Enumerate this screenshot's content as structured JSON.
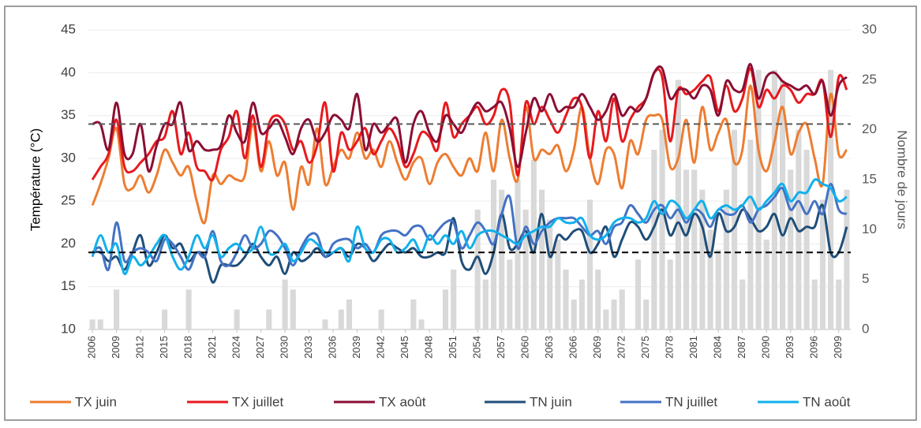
{
  "chart_data": {
    "type": "line",
    "y_label": "Température (°C)",
    "y2_label": "Nombre de jours",
    "x": [
      2006,
      2007,
      2008,
      2009,
      2010,
      2011,
      2012,
      2013,
      2014,
      2015,
      2016,
      2017,
      2018,
      2019,
      2020,
      2021,
      2022,
      2023,
      2024,
      2025,
      2026,
      2027,
      2028,
      2029,
      2030,
      2031,
      2032,
      2033,
      2034,
      2035,
      2036,
      2037,
      2038,
      2039,
      2040,
      2041,
      2042,
      2043,
      2044,
      2045,
      2046,
      2047,
      2048,
      2049,
      2050,
      2051,
      2052,
      2053,
      2054,
      2055,
      2056,
      2057,
      2058,
      2059,
      2060,
      2061,
      2062,
      2063,
      2064,
      2065,
      2066,
      2067,
      2068,
      2069,
      2070,
      2071,
      2072,
      2073,
      2074,
      2075,
      2076,
      2077,
      2078,
      2079,
      2080,
      2081,
      2082,
      2083,
      2084,
      2085,
      2086,
      2087,
      2088,
      2089,
      2090,
      2091,
      2092,
      2093,
      2094,
      2095,
      2096,
      2097,
      2098,
      2099,
      2100
    ],
    "xlim": [
      2005.5,
      2100.5
    ],
    "xticks": [
      2006,
      2009,
      2012,
      2015,
      2018,
      2021,
      2024,
      2027,
      2030,
      2033,
      2036,
      2039,
      2042,
      2045,
      2048,
      2051,
      2054,
      2057,
      2060,
      2063,
      2066,
      2069,
      2072,
      2075,
      2078,
      2081,
      2084,
      2087,
      2090,
      2093,
      2096,
      2099
    ],
    "ylim": [
      10,
      45
    ],
    "yticks": [
      10,
      15,
      20,
      25,
      30,
      35,
      40,
      45
    ],
    "y2lim": [
      0,
      30
    ],
    "y2ticks": [
      0,
      5,
      10,
      15,
      20,
      25,
      30
    ],
    "grid": true,
    "reference_lines": [
      {
        "value": 34,
        "color": "#595959"
      },
      {
        "value": 19,
        "color": "#000000"
      }
    ],
    "series": [
      {
        "type": "bar",
        "axis": "y2",
        "color": "#d9d9d9",
        "values": [
          1,
          1,
          0,
          4,
          0,
          0,
          0,
          0,
          0,
          2,
          0,
          0,
          4,
          0,
          0,
          0,
          0,
          0,
          2,
          0,
          0,
          0,
          2,
          0,
          5,
          4,
          0,
          0,
          0,
          1,
          0,
          2,
          3,
          0,
          0,
          0,
          2,
          0,
          0,
          0,
          3,
          1,
          0,
          0,
          4,
          6,
          0,
          0,
          12,
          5,
          15,
          14,
          7,
          15,
          12,
          17,
          14,
          11,
          9,
          6,
          3,
          5,
          13,
          6,
          2,
          3,
          4,
          0,
          7,
          3,
          18,
          20,
          7,
          25,
          16,
          16,
          14,
          10,
          8,
          14,
          20,
          5,
          19,
          26,
          9,
          26,
          25,
          16,
          20,
          18,
          5,
          13,
          26,
          5,
          14
        ]
      },
      {
        "name": "TX juin",
        "color": "#ed7d31",
        "values": [
          24.5,
          27,
          30,
          33.5,
          27,
          26.5,
          28,
          26,
          28,
          31,
          29.5,
          28,
          29,
          25,
          22.5,
          28,
          27,
          28,
          27.5,
          28,
          34,
          28.5,
          32,
          28,
          29.5,
          24,
          29,
          27,
          33.5,
          27,
          29,
          31,
          30,
          33,
          30,
          31,
          29,
          32,
          29.5,
          27.5,
          29.5,
          30,
          27,
          29.5,
          30.5,
          29,
          28,
          30,
          28.5,
          33,
          28.5,
          34.5,
          30,
          27.5,
          36,
          30,
          31,
          30.5,
          31.5,
          28.5,
          31,
          36,
          30,
          27,
          31,
          30.5,
          26.5,
          32,
          30.5,
          34.5,
          35,
          34.5,
          29,
          30,
          34.5,
          29.5,
          36,
          31,
          33,
          34.5,
          29.5,
          31,
          38.5,
          31,
          28.5,
          32,
          36,
          30.5,
          33,
          34,
          30,
          27,
          37.5,
          30.5,
          31
        ]
      },
      {
        "name": "TX juillet",
        "color": "#e8191d",
        "values": [
          27.5,
          29,
          30.5,
          34.5,
          29,
          28.5,
          29.5,
          30.5,
          32,
          32.5,
          35.5,
          30.5,
          33,
          29,
          28.5,
          27.5,
          31,
          32.5,
          35.5,
          30,
          35,
          29,
          34,
          35,
          34,
          31,
          32,
          29.5,
          31.5,
          36.5,
          28.5,
          33,
          31,
          32,
          33.5,
          30.5,
          32,
          33.5,
          32,
          29,
          30.5,
          33,
          32.5,
          31,
          36.5,
          32.5,
          34,
          35,
          36,
          34,
          35,
          38,
          36.5,
          28,
          36.5,
          34,
          36,
          34.5,
          33,
          35,
          37,
          36,
          30,
          35.5,
          32,
          37,
          32,
          34.5,
          36,
          37,
          40,
          39.5,
          32,
          38,
          37.5,
          38,
          39,
          39.5,
          35.5,
          38.5,
          35.5,
          37,
          40.5,
          36,
          38,
          37,
          38.5,
          38,
          36.5,
          37.5,
          37.5,
          39,
          32.5,
          39.5,
          38
        ]
      },
      {
        "name": "TX août",
        "color": "#8b0e33",
        "values": [
          34,
          34,
          31,
          36.5,
          30.5,
          30.5,
          34,
          28.5,
          31.5,
          34,
          34,
          36.5,
          31,
          32,
          31,
          31,
          31.5,
          35,
          33,
          32,
          36.5,
          33,
          33.5,
          34.5,
          32.5,
          30.5,
          33.5,
          34.5,
          32,
          33,
          35,
          34.5,
          33.5,
          37.5,
          31,
          34,
          33,
          34,
          34.5,
          29.5,
          34,
          35.5,
          33,
          32,
          35,
          34,
          33,
          35,
          36.5,
          35.5,
          36,
          36.5,
          33.5,
          29,
          33,
          37,
          35.5,
          37.5,
          35.5,
          36,
          36,
          37.5,
          36,
          34.5,
          35.5,
          37.5,
          35,
          36,
          35.5,
          37,
          40,
          40.5,
          37,
          38,
          38,
          37,
          38.5,
          38,
          35,
          39,
          38,
          38,
          41,
          37,
          39.5,
          40,
          39,
          38.5,
          38,
          38.5,
          37.5,
          39,
          35,
          38.5,
          39.5
        ]
      },
      {
        "name": "TN juin",
        "color": "#1f4e79",
        "values": [
          19,
          19,
          18,
          18.5,
          17,
          19,
          21,
          17.5,
          19,
          21,
          19.5,
          20,
          18,
          19,
          18.5,
          15.5,
          17.5,
          17.5,
          17.5,
          18.5,
          20,
          18.5,
          17.5,
          18.5,
          16.5,
          19,
          18,
          18.5,
          19.5,
          18.5,
          19,
          19.5,
          18.5,
          20,
          19.5,
          18,
          19,
          20,
          19.5,
          19,
          19.5,
          18.5,
          18.5,
          19,
          19,
          23,
          18,
          17,
          18.5,
          16.5,
          19,
          23.5,
          19.5,
          20,
          21.5,
          19,
          23.5,
          18.5,
          21,
          20.5,
          21.5,
          21.5,
          19,
          20,
          22,
          18.5,
          20.5,
          22.5,
          22,
          20.5,
          22,
          24,
          21,
          22.5,
          21,
          23.5,
          22,
          18.5,
          23.5,
          21.5,
          22,
          24,
          23,
          21.5,
          22,
          23.5,
          21,
          23,
          21.5,
          22,
          22,
          24.5,
          19,
          19,
          22
        ]
      },
      {
        "name": "TN juillet",
        "color": "#4472c4",
        "values": [
          19,
          19.5,
          17,
          22.5,
          18,
          19,
          19.5,
          19,
          18,
          20.5,
          20,
          18.5,
          17,
          19,
          18.5,
          21.5,
          18,
          17.5,
          19,
          21,
          19.5,
          20,
          21.5,
          21,
          19.5,
          17.5,
          19.5,
          21,
          21,
          18.5,
          20,
          20.5,
          20.5,
          19.5,
          20,
          19,
          21,
          21.5,
          21.5,
          21,
          22,
          22,
          20.5,
          21.5,
          22.5,
          22.5,
          19.5,
          21,
          22.5,
          21.5,
          20,
          23.5,
          25.5,
          19.5,
          22,
          20,
          21.5,
          22.5,
          23,
          23,
          23,
          22,
          21,
          21.5,
          20,
          22,
          22.5,
          24.5,
          23.5,
          22.5,
          24,
          24.5,
          23,
          24,
          22.5,
          24,
          23.5,
          22,
          24,
          23.5,
          23.5,
          24.5,
          22.5,
          24,
          24.5,
          25.5,
          26.5,
          24,
          25,
          23.5,
          25,
          23.5,
          27,
          24,
          23.5
        ]
      },
      {
        "name": "TN août",
        "color": "#11b0ec",
        "values": [
          18.5,
          21,
          19,
          20,
          16.5,
          18.5,
          17.5,
          18.5,
          20,
          21,
          18.5,
          17,
          18.5,
          21,
          19.5,
          21,
          18.5,
          19.5,
          20,
          19,
          19.5,
          22,
          19,
          19,
          20,
          18,
          19,
          20.5,
          20,
          19,
          19,
          19.5,
          18,
          22,
          19.5,
          19,
          20.5,
          20.5,
          19,
          19.5,
          20.5,
          19,
          21,
          20,
          21,
          20,
          21.5,
          19.5,
          21,
          21.5,
          21.5,
          21,
          20.5,
          20,
          21,
          21.5,
          22,
          22,
          23,
          22.5,
          22.5,
          23,
          21,
          20.5,
          21,
          22.5,
          23,
          23,
          22.5,
          23,
          25,
          23.5,
          25,
          24.5,
          23,
          24,
          25,
          23,
          24,
          24.5,
          24,
          24.5,
          25.5,
          24,
          25,
          26,
          27,
          25,
          26,
          26,
          27.5,
          27,
          26.5,
          25,
          25.5
        ]
      }
    ]
  }
}
